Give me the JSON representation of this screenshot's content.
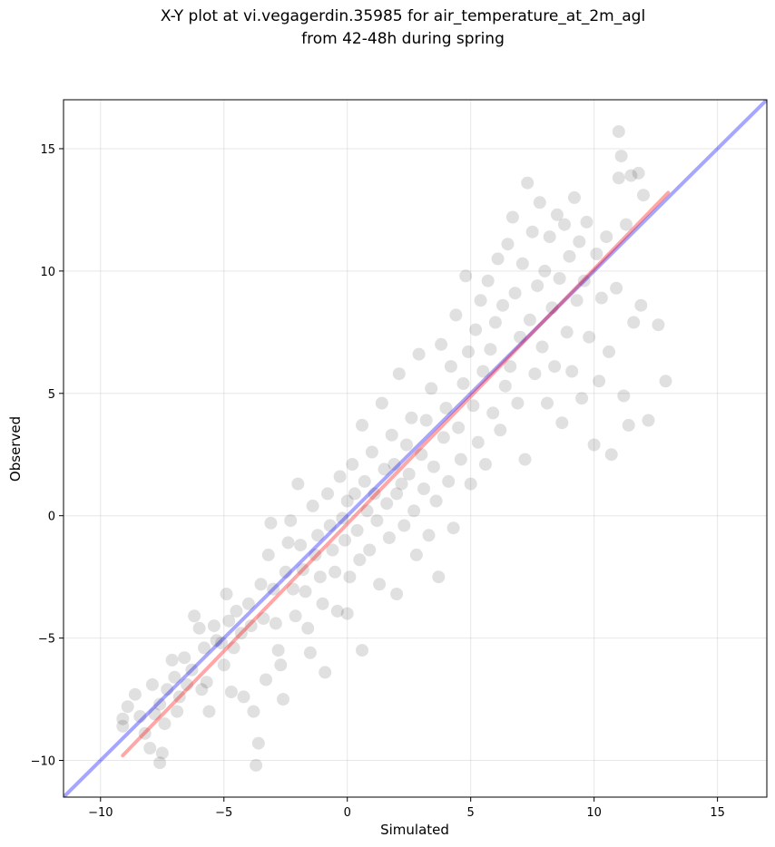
{
  "chart_data": {
    "type": "scatter",
    "title": [
      "X-Y plot at vi.vegagerdin.35985 for air_temperature_at_2m_agl",
      "from 42-48h during spring"
    ],
    "xlabel": "Simulated",
    "ylabel": "Observed",
    "xlim": [
      -11.5,
      17
    ],
    "ylim": [
      -11.5,
      17
    ],
    "xticks": [
      -10,
      -5,
      0,
      5,
      10,
      15
    ],
    "yticks": [
      -10,
      -5,
      0,
      5,
      10,
      15
    ],
    "xtick_labels": [
      "−10",
      "−5",
      "0",
      "5",
      "10",
      "15"
    ],
    "ytick_labels": [
      "−10",
      "−5",
      "0",
      "5",
      "10",
      "15"
    ],
    "grid": true,
    "points_color": "#000000",
    "points_note": "approx. 2000 semi-transparent points clustered along the diagonal; representative sample below",
    "points": [
      [
        -9.1,
        -8.3
      ],
      [
        -9.1,
        -8.6
      ],
      [
        -8.9,
        -7.8
      ],
      [
        -8.6,
        -7.3
      ],
      [
        -8.4,
        -8.2
      ],
      [
        -8.2,
        -8.9
      ],
      [
        -8.0,
        -9.5
      ],
      [
        -7.9,
        -6.9
      ],
      [
        -7.8,
        -8.1
      ],
      [
        -7.6,
        -7.7
      ],
      [
        -7.6,
        -10.1
      ],
      [
        -7.5,
        -9.7
      ],
      [
        -7.4,
        -8.5
      ],
      [
        -7.3,
        -7.1
      ],
      [
        -7.1,
        -5.9
      ],
      [
        -7.0,
        -6.6
      ],
      [
        -6.9,
        -8.0
      ],
      [
        -6.8,
        -7.4
      ],
      [
        -6.6,
        -5.8
      ],
      [
        -6.5,
        -6.9
      ],
      [
        -6.3,
        -6.3
      ],
      [
        -6.2,
        -4.1
      ],
      [
        -6.0,
        -4.6
      ],
      [
        -5.9,
        -7.1
      ],
      [
        -5.8,
        -5.4
      ],
      [
        -5.7,
        -6.8
      ],
      [
        -5.6,
        -8.0
      ],
      [
        -5.4,
        -4.5
      ],
      [
        -5.3,
        -5.1
      ],
      [
        -5.1,
        -5.2
      ],
      [
        -5.0,
        -6.1
      ],
      [
        -4.9,
        -3.2
      ],
      [
        -4.8,
        -4.3
      ],
      [
        -4.7,
        -7.2
      ],
      [
        -4.6,
        -5.4
      ],
      [
        -4.5,
        -3.9
      ],
      [
        -4.3,
        -4.8
      ],
      [
        -4.2,
        -7.4
      ],
      [
        -4.0,
        -3.6
      ],
      [
        -3.9,
        -4.5
      ],
      [
        -3.8,
        -8.0
      ],
      [
        -3.7,
        -10.2
      ],
      [
        -3.6,
        -9.3
      ],
      [
        -3.5,
        -2.8
      ],
      [
        -3.4,
        -4.2
      ],
      [
        -3.3,
        -6.7
      ],
      [
        -3.2,
        -1.6
      ],
      [
        -3.1,
        -0.3
      ],
      [
        -3.0,
        -3.0
      ],
      [
        -2.9,
        -4.4
      ],
      [
        -2.8,
        -5.5
      ],
      [
        -2.7,
        -6.1
      ],
      [
        -2.6,
        -7.5
      ],
      [
        -2.5,
        -2.3
      ],
      [
        -2.4,
        -1.1
      ],
      [
        -2.3,
        -0.2
      ],
      [
        -2.2,
        -3.0
      ],
      [
        -2.1,
        -4.1
      ],
      [
        -2.0,
        1.3
      ],
      [
        -1.9,
        -1.2
      ],
      [
        -1.8,
        -2.2
      ],
      [
        -1.7,
        -3.1
      ],
      [
        -1.6,
        -4.6
      ],
      [
        -1.5,
        -5.6
      ],
      [
        -1.4,
        0.4
      ],
      [
        -1.3,
        -1.6
      ],
      [
        -1.2,
        -0.8
      ],
      [
        -1.1,
        -2.5
      ],
      [
        -1.0,
        -3.6
      ],
      [
        -0.9,
        -6.4
      ],
      [
        -0.8,
        0.9
      ],
      [
        -0.7,
        -0.4
      ],
      [
        -0.6,
        -1.4
      ],
      [
        -0.5,
        -2.3
      ],
      [
        -0.4,
        -3.9
      ],
      [
        -0.3,
        1.6
      ],
      [
        -0.2,
        -0.1
      ],
      [
        -0.1,
        -1.0
      ],
      [
        0.0,
        0.6
      ],
      [
        0.0,
        -4.0
      ],
      [
        0.1,
        -2.5
      ],
      [
        0.2,
        2.1
      ],
      [
        0.3,
        0.9
      ],
      [
        0.4,
        -0.6
      ],
      [
        0.5,
        -1.8
      ],
      [
        0.6,
        3.7
      ],
      [
        0.6,
        -5.5
      ],
      [
        0.7,
        1.4
      ],
      [
        0.8,
        0.2
      ],
      [
        0.9,
        -1.4
      ],
      [
        1.0,
        2.6
      ],
      [
        1.1,
        0.9
      ],
      [
        1.2,
        -0.2
      ],
      [
        1.3,
        -2.8
      ],
      [
        1.4,
        4.6
      ],
      [
        1.5,
        1.9
      ],
      [
        1.6,
        0.5
      ],
      [
        1.7,
        -0.9
      ],
      [
        1.8,
        3.3
      ],
      [
        1.9,
        2.1
      ],
      [
        2.0,
        0.9
      ],
      [
        2.0,
        -3.2
      ],
      [
        2.1,
        5.8
      ],
      [
        2.2,
        1.3
      ],
      [
        2.3,
        -0.4
      ],
      [
        2.4,
        2.9
      ],
      [
        2.5,
        1.7
      ],
      [
        2.6,
        4.0
      ],
      [
        2.7,
        0.2
      ],
      [
        2.8,
        -1.6
      ],
      [
        2.9,
        6.6
      ],
      [
        3.0,
        2.5
      ],
      [
        3.1,
        1.1
      ],
      [
        3.2,
        3.9
      ],
      [
        3.3,
        -0.8
      ],
      [
        3.4,
        5.2
      ],
      [
        3.5,
        2.0
      ],
      [
        3.6,
        0.6
      ],
      [
        3.7,
        -2.5
      ],
      [
        3.8,
        7.0
      ],
      [
        3.9,
        3.2
      ],
      [
        4.0,
        4.4
      ],
      [
        4.1,
        1.4
      ],
      [
        4.2,
        6.1
      ],
      [
        4.3,
        -0.5
      ],
      [
        4.4,
        8.2
      ],
      [
        4.5,
        3.6
      ],
      [
        4.6,
        2.3
      ],
      [
        4.7,
        5.4
      ],
      [
        4.8,
        9.8
      ],
      [
        4.9,
        6.7
      ],
      [
        5.0,
        1.3
      ],
      [
        5.1,
        4.5
      ],
      [
        5.2,
        7.6
      ],
      [
        5.3,
        3.0
      ],
      [
        5.4,
        8.8
      ],
      [
        5.5,
        5.9
      ],
      [
        5.6,
        2.1
      ],
      [
        5.7,
        9.6
      ],
      [
        5.8,
        6.8
      ],
      [
        5.9,
        4.2
      ],
      [
        6.0,
        7.9
      ],
      [
        6.1,
        10.5
      ],
      [
        6.2,
        3.5
      ],
      [
        6.3,
        8.6
      ],
      [
        6.4,
        5.3
      ],
      [
        6.5,
        11.1
      ],
      [
        6.6,
        6.1
      ],
      [
        6.7,
        12.2
      ],
      [
        6.8,
        9.1
      ],
      [
        6.9,
        4.6
      ],
      [
        7.0,
        7.3
      ],
      [
        7.1,
        10.3
      ],
      [
        7.2,
        2.3
      ],
      [
        7.3,
        13.6
      ],
      [
        7.4,
        8.0
      ],
      [
        7.5,
        11.6
      ],
      [
        7.6,
        5.8
      ],
      [
        7.7,
        9.4
      ],
      [
        7.8,
        12.8
      ],
      [
        7.9,
        6.9
      ],
      [
        8.0,
        10.0
      ],
      [
        8.1,
        4.6
      ],
      [
        8.2,
        11.4
      ],
      [
        8.3,
        8.5
      ],
      [
        8.4,
        6.1
      ],
      [
        8.5,
        12.3
      ],
      [
        8.6,
        9.7
      ],
      [
        8.7,
        3.8
      ],
      [
        8.8,
        11.9
      ],
      [
        8.9,
        7.5
      ],
      [
        9.0,
        10.6
      ],
      [
        9.1,
        5.9
      ],
      [
        9.2,
        13.0
      ],
      [
        9.3,
        8.8
      ],
      [
        9.4,
        11.2
      ],
      [
        9.5,
        4.8
      ],
      [
        9.6,
        9.6
      ],
      [
        9.7,
        12.0
      ],
      [
        9.8,
        7.3
      ],
      [
        10.0,
        2.9
      ],
      [
        10.1,
        10.7
      ],
      [
        10.2,
        5.5
      ],
      [
        10.3,
        8.9
      ],
      [
        10.5,
        11.4
      ],
      [
        10.6,
        6.7
      ],
      [
        10.7,
        2.5
      ],
      [
        10.9,
        9.3
      ],
      [
        11.0,
        13.8
      ],
      [
        11.0,
        15.7
      ],
      [
        11.1,
        14.7
      ],
      [
        11.2,
        4.9
      ],
      [
        11.3,
        11.9
      ],
      [
        11.4,
        3.7
      ],
      [
        11.5,
        13.9
      ],
      [
        11.6,
        7.9
      ],
      [
        11.8,
        14.0
      ],
      [
        11.9,
        8.6
      ],
      [
        12.0,
        13.1
      ],
      [
        12.2,
        3.9
      ],
      [
        12.6,
        7.8
      ],
      [
        12.9,
        5.5
      ]
    ],
    "lines": [
      {
        "role": "one-to-one",
        "color": "#0000ff",
        "x": [
          -11.5,
          17
        ],
        "y": [
          -11.5,
          17
        ]
      },
      {
        "role": "fit",
        "color": "#ff0000",
        "x": [
          -9.1,
          13.0
        ],
        "y": [
          -9.8,
          13.2
        ]
      }
    ]
  }
}
